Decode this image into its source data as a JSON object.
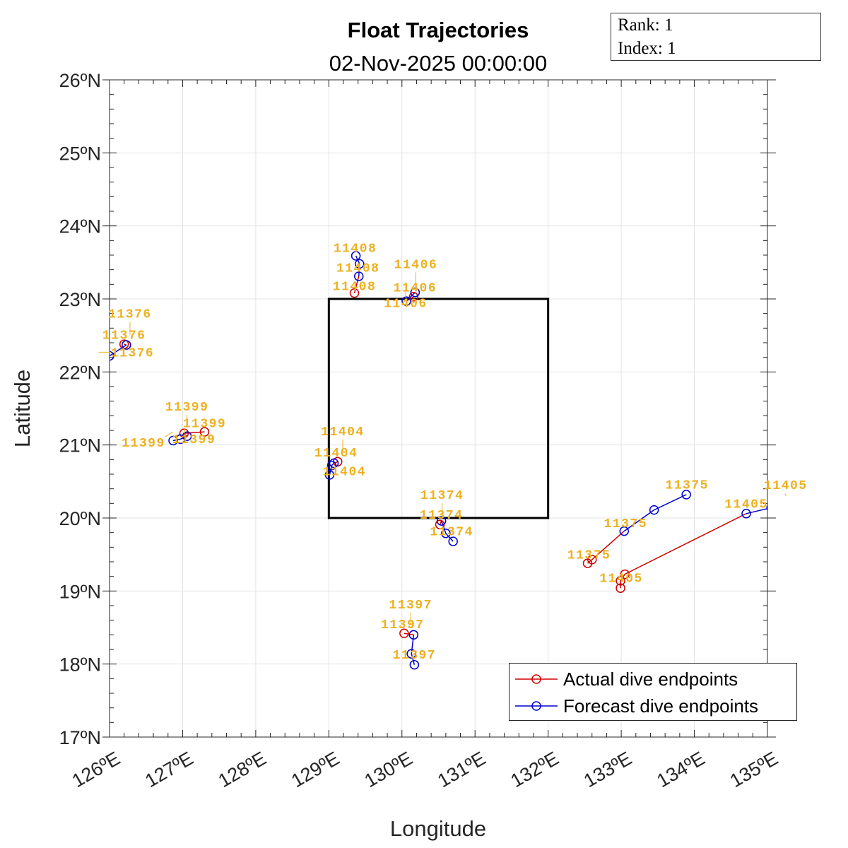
{
  "chart_data": {
    "type": "line",
    "title": "Float Trajectories",
    "subtitle": "02-Nov-2025 00:00:00",
    "xlabel": "Longitude",
    "ylabel": "Latitude",
    "xlim": [
      126,
      135
    ],
    "ylim": [
      17,
      26
    ],
    "xticks": [
      "126ºE",
      "127ºE",
      "128ºE",
      "129ºE",
      "130ºE",
      "131ºE",
      "132ºE",
      "133ºE",
      "134ºE",
      "135ºE"
    ],
    "yticks": [
      "17ºN",
      "18ºN",
      "19ºN",
      "20ºN",
      "21ºN",
      "22ºN",
      "23ºN",
      "24ºN",
      "25ºN",
      "26ºN"
    ],
    "grid": true,
    "legend_placement": "bottom-right",
    "legend": [
      "Actual dive endpoints",
      "Forecast dive endpoints"
    ],
    "colors": {
      "actual": "#D00000",
      "forecast": "#0000CC",
      "label": "#EDB120",
      "box": "#000000"
    },
    "region_box": {
      "lon": [
        129,
        132
      ],
      "lat": [
        20,
        23
      ]
    },
    "floats": [
      {
        "id": "11408",
        "actual": [
          [
            129.35,
            23.08
          ]
        ],
        "forecast": [
          [
            129.41,
            23.31
          ],
          [
            129.42,
            23.48
          ],
          [
            129.37,
            23.59
          ]
        ],
        "labels": [
          [
            129.35,
            23.18,
            "11408"
          ],
          [
            129.4,
            23.43,
            "11408"
          ],
          [
            129.36,
            23.7,
            "11408"
          ]
        ]
      },
      {
        "id": "11406",
        "actual": [
          [
            130.16,
            23.03
          ]
        ],
        "forecast": [
          [
            130.06,
            22.97
          ],
          [
            130.18,
            23.09
          ]
        ],
        "labels": [
          [
            130.18,
            23.16,
            "11406"
          ],
          [
            130.05,
            23.1,
            "11406"
          ],
          [
            130.19,
            23.19,
            "11406"
          ]
        ]
      },
      {
        "id": "11376",
        "actual": [
          [
            126.2,
            22.38
          ]
        ],
        "forecast": [
          [
            126.23,
            22.37
          ],
          [
            126.0,
            22.22
          ]
        ],
        "labels": [
          [
            126.2,
            22.51,
            "11376"
          ],
          [
            126.28,
            22.51,
            "11376"
          ],
          [
            125.85,
            22.27,
            "11376"
          ]
        ]
      },
      {
        "id": "11399",
        "actual": [
          [
            127.3,
            21.18
          ],
          [
            127.02,
            21.16
          ]
        ],
        "forecast": [
          [
            127.06,
            21.12
          ],
          [
            126.97,
            21.08
          ],
          [
            126.87,
            21.06
          ]
        ],
        "labels": [
          [
            127.3,
            21.3,
            "11399"
          ],
          [
            127.03,
            21.22,
            "11399"
          ],
          [
            126.87,
            21.18,
            "11399"
          ],
          [
            127.06,
            21.24,
            "11399"
          ]
        ]
      },
      {
        "id": "11404",
        "actual": [
          [
            129.12,
            20.77
          ]
        ],
        "forecast": [
          [
            129.07,
            20.75
          ],
          [
            129.04,
            20.72
          ],
          [
            129.01,
            20.59
          ]
        ],
        "labels": [
          [
            129.1,
            20.9,
            "11404"
          ],
          [
            129.19,
            20.9,
            "11404"
          ],
          [
            129.0,
            20.72,
            "11404"
          ]
        ]
      },
      {
        "id": "11374",
        "actual": [
          [
            130.52,
            19.91
          ]
        ],
        "forecast": [
          [
            130.54,
            19.96
          ],
          [
            130.6,
            19.79
          ],
          [
            130.7,
            19.68
          ]
        ],
        "labels": [
          [
            130.54,
            20.05,
            "11374"
          ],
          [
            130.55,
            20.03,
            "11374"
          ],
          [
            130.68,
            19.82,
            "11374"
          ]
        ]
      },
      {
        "id": "11397",
        "actual": [
          [
            130.03,
            18.42
          ]
        ],
        "forecast": [
          [
            130.16,
            18.4
          ],
          [
            130.13,
            18.14
          ],
          [
            130.17,
            17.99
          ]
        ],
        "labels": [
          [
            130.01,
            18.55,
            "11397"
          ],
          [
            130.12,
            18.53,
            "11397"
          ],
          [
            130.17,
            18.13,
            "11397"
          ]
        ]
      },
      {
        "id": "11375",
        "actual": [
          [
            132.54,
            19.38
          ],
          [
            132.6,
            19.43
          ]
        ],
        "forecast": [
          [
            133.04,
            19.82
          ],
          [
            133.45,
            20.11
          ],
          [
            133.89,
            20.32
          ]
        ],
        "labels": [
          [
            132.56,
            19.5,
            "11375"
          ],
          [
            133.06,
            19.93,
            "11375"
          ],
          [
            133.9,
            20.46,
            "11375"
          ]
        ]
      },
      {
        "id": "11405",
        "actual": [
          [
            132.99,
            19.04
          ],
          [
            132.99,
            19.14
          ],
          [
            133.05,
            19.23
          ]
        ],
        "forecast": [
          [
            134.71,
            20.06
          ],
          [
            135.05,
            20.14
          ]
        ],
        "labels": [
          [
            133.0,
            19.18,
            "11405"
          ],
          [
            134.71,
            20.2,
            "11405"
          ],
          [
            135.25,
            20.3,
            "11405"
          ]
        ]
      }
    ]
  },
  "info_box": {
    "rank": "Rank:  1",
    "index": "Index:  1"
  }
}
